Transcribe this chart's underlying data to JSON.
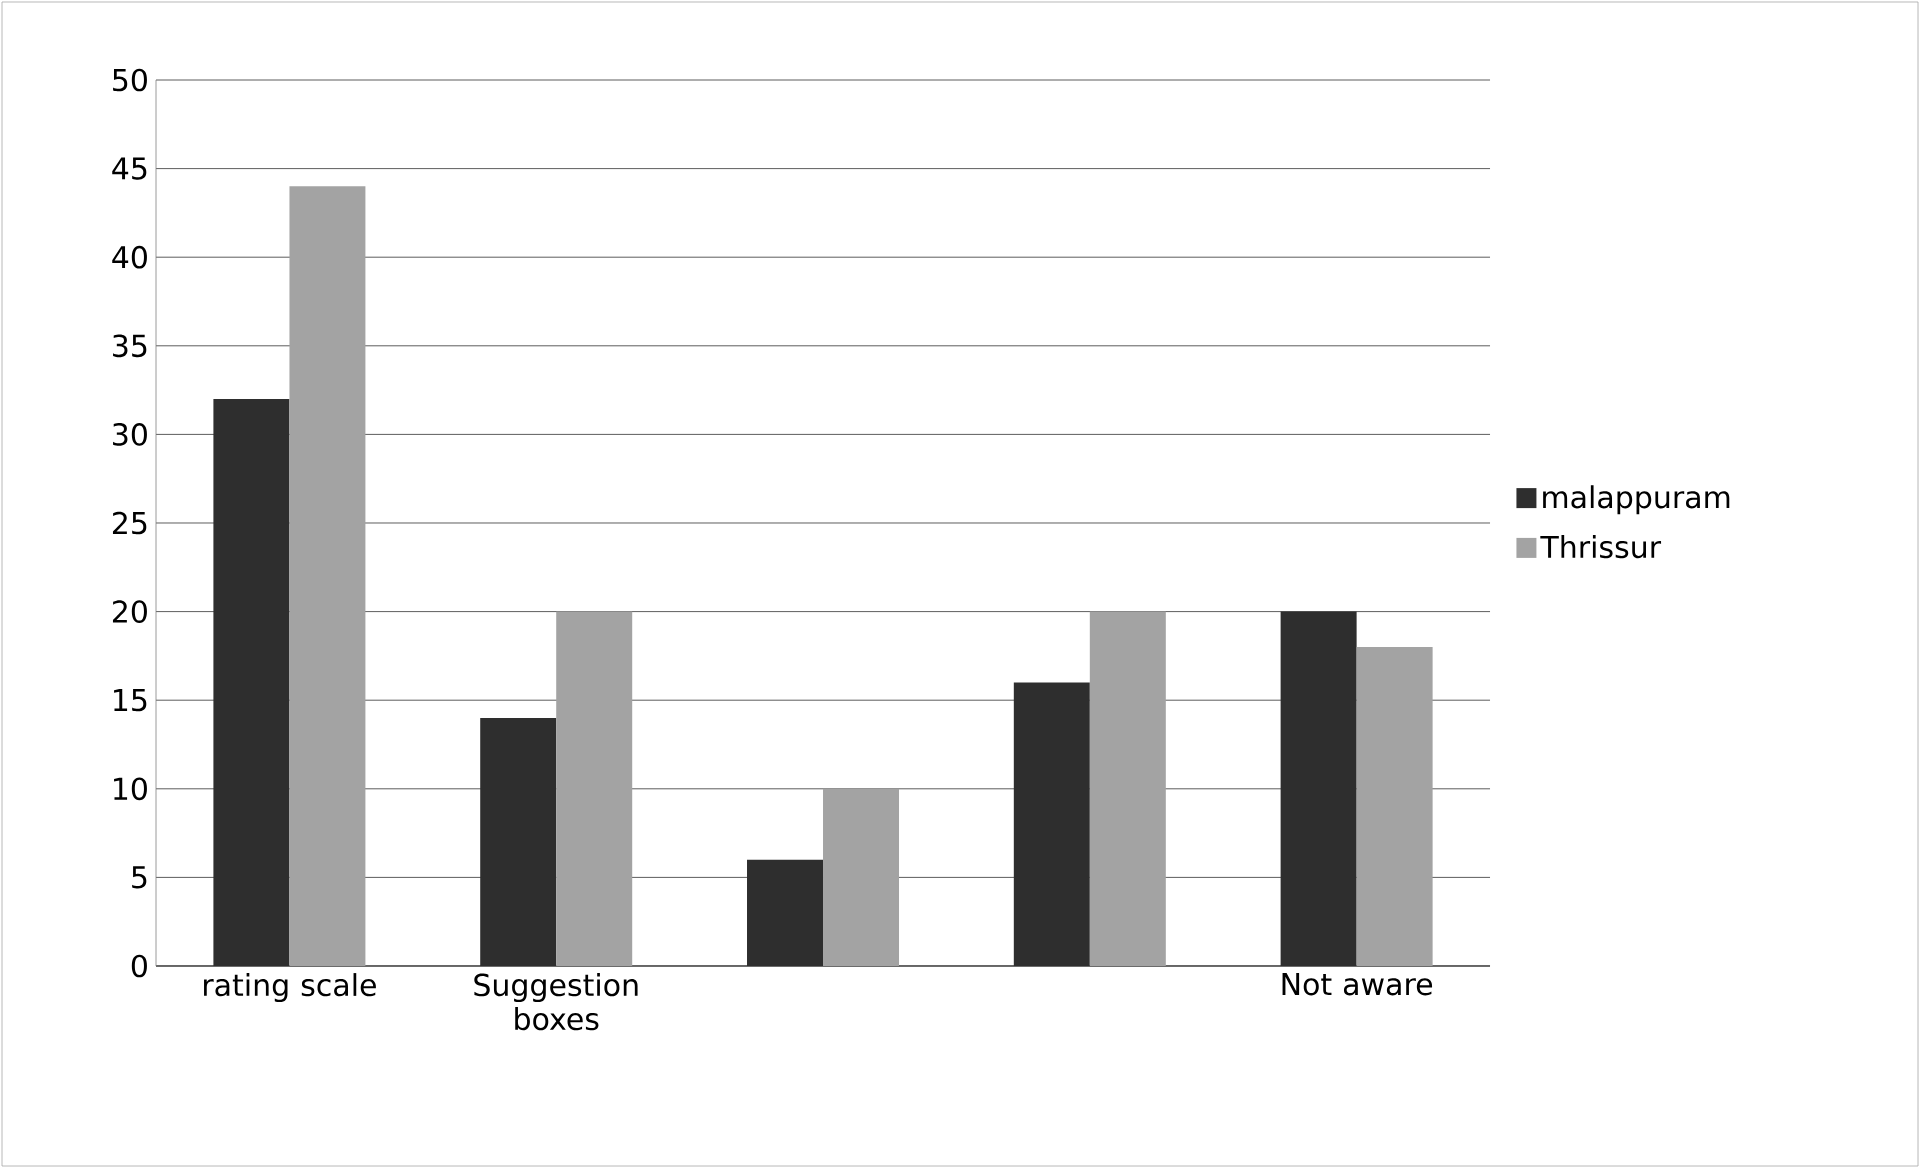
{
  "chart_data": {
    "type": "bar",
    "categories": [
      "rating scale",
      "Suggestion boxes",
      null,
      null,
      "Not aware"
    ],
    "series": [
      {
        "name": "malappuram",
        "color": "#2e2e2e",
        "values": [
          32,
          14,
          6,
          16,
          20
        ]
      },
      {
        "name": "Thrissur",
        "color": "#a3a3a3",
        "values": [
          44,
          20,
          10,
          20,
          18
        ]
      }
    ],
    "ylim": [
      0,
      50
    ],
    "yticks": [
      0,
      5,
      10,
      15,
      20,
      25,
      30,
      35,
      40,
      45,
      50
    ],
    "grid": "y",
    "legend": "right"
  }
}
